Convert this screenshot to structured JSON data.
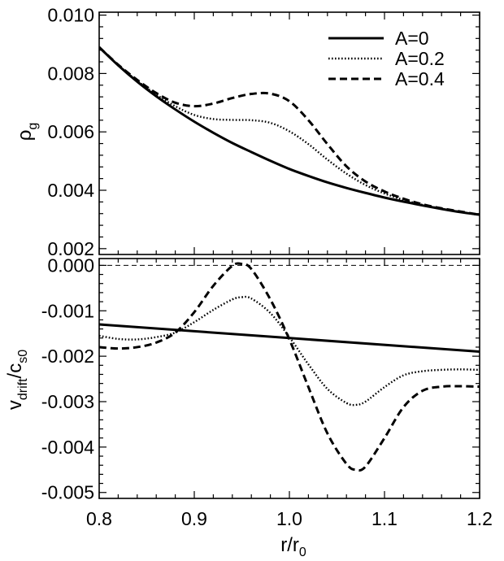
{
  "chart_data": [
    {
      "panel": "top",
      "type": "line",
      "ylabel": "ρ",
      "ylabel_sub": "g",
      "xlim": [
        0.8,
        1.2
      ],
      "ylim": [
        0.0018,
        0.0101
      ],
      "yticks": [
        "0.002",
        "0.004",
        "0.006",
        "0.008",
        "0.010"
      ],
      "legend": {
        "placement": "top-right"
      },
      "series": [
        {
          "name": "A=0",
          "style": "solid",
          "x": [
            0.8,
            0.82,
            0.84,
            0.86,
            0.88,
            0.9,
            0.92,
            0.94,
            0.96,
            0.98,
            1.0,
            1.02,
            1.04,
            1.06,
            1.08,
            1.1,
            1.12,
            1.14,
            1.16,
            1.18,
            1.2
          ],
          "y": [
            0.0089,
            0.00828,
            0.00772,
            0.00722,
            0.00677,
            0.00635,
            0.00597,
            0.00562,
            0.00531,
            0.00501,
            0.00473,
            0.00449,
            0.00427,
            0.00408,
            0.00391,
            0.00375,
            0.00361,
            0.00348,
            0.00336,
            0.00325,
            0.00316
          ]
        },
        {
          "name": "A=0.2",
          "style": "dotted",
          "x": [
            0.8,
            0.82,
            0.84,
            0.86,
            0.88,
            0.9,
            0.92,
            0.94,
            0.96,
            0.98,
            1.0,
            1.02,
            1.04,
            1.06,
            1.08,
            1.1,
            1.12,
            1.14,
            1.16,
            1.18,
            1.2
          ],
          "y": [
            0.0089,
            0.00829,
            0.00775,
            0.00728,
            0.00688,
            0.00658,
            0.00644,
            0.00641,
            0.0064,
            0.00631,
            0.00602,
            0.00558,
            0.00505,
            0.00457,
            0.00418,
            0.00389,
            0.00367,
            0.0035,
            0.00337,
            0.00326,
            0.00316
          ]
        },
        {
          "name": "A=0.4",
          "style": "dashed",
          "x": [
            0.8,
            0.82,
            0.84,
            0.86,
            0.88,
            0.9,
            0.92,
            0.94,
            0.96,
            0.98,
            1.0,
            1.02,
            1.04,
            1.06,
            1.08,
            1.1,
            1.12,
            1.14,
            1.16,
            1.18,
            1.2
          ],
          "y": [
            0.0089,
            0.0083,
            0.00778,
            0.00733,
            0.007,
            0.00688,
            0.00697,
            0.00716,
            0.0073,
            0.00731,
            0.00705,
            0.0064,
            0.00558,
            0.00482,
            0.0043,
            0.00396,
            0.00371,
            0.00352,
            0.00338,
            0.00327,
            0.00316
          ]
        }
      ]
    },
    {
      "panel": "bottom",
      "type": "line",
      "ylabel": "v",
      "ylabel_sub1": "drift",
      "ylabel_mid": "/c",
      "ylabel_sub2": "s0",
      "xlabel": "r/r",
      "xlabel_sub": "0",
      "xlim": [
        0.8,
        1.2
      ],
      "ylim": [
        -0.00513,
        0.00015
      ],
      "xticks": [
        "0.8",
        "0.9",
        "1.0",
        "1.1",
        "1.2"
      ],
      "yticks": [
        "0.000",
        "-0.001",
        "-0.002",
        "-0.003",
        "-0.004",
        "-0.005"
      ],
      "reference_line": {
        "y": 0.0,
        "style": "thin-dashed"
      },
      "series": [
        {
          "name": "A=0",
          "style": "solid",
          "x": [
            0.8,
            1.2
          ],
          "y": [
            -0.0013,
            -0.0019
          ]
        },
        {
          "name": "A=0.2",
          "style": "dotted",
          "x": [
            0.8,
            0.82,
            0.84,
            0.86,
            0.88,
            0.9,
            0.92,
            0.94,
            0.95,
            0.96,
            0.98,
            1.0,
            1.02,
            1.04,
            1.06,
            1.07,
            1.08,
            1.1,
            1.12,
            1.14,
            1.16,
            1.18,
            1.2
          ],
          "y": [
            -0.00155,
            -0.00162,
            -0.00163,
            -0.00158,
            -0.00148,
            -0.00125,
            -0.00098,
            -0.00075,
            -0.0007,
            -0.00073,
            -0.00105,
            -0.00158,
            -0.00218,
            -0.00272,
            -0.00303,
            -0.00307,
            -0.003,
            -0.00268,
            -0.00242,
            -0.00233,
            -0.0023,
            -0.00229,
            -0.0023
          ]
        },
        {
          "name": "A=0.4",
          "style": "dashed",
          "x": [
            0.8,
            0.82,
            0.84,
            0.86,
            0.88,
            0.9,
            0.92,
            0.94,
            0.95,
            0.96,
            0.98,
            1.0,
            1.02,
            1.04,
            1.06,
            1.07,
            1.08,
            1.1,
            1.12,
            1.14,
            1.16,
            1.18,
            1.2
          ],
          "y": [
            -0.0018,
            -0.00183,
            -0.0018,
            -0.0017,
            -0.00148,
            -0.00103,
            -0.00045,
            -1e-05,
            3e-05,
            -8e-05,
            -0.00075,
            -0.00163,
            -0.00268,
            -0.0037,
            -0.00437,
            -0.0045,
            -0.00443,
            -0.0038,
            -0.00312,
            -0.00276,
            -0.00267,
            -0.00266,
            -0.00267
          ]
        }
      ]
    }
  ]
}
